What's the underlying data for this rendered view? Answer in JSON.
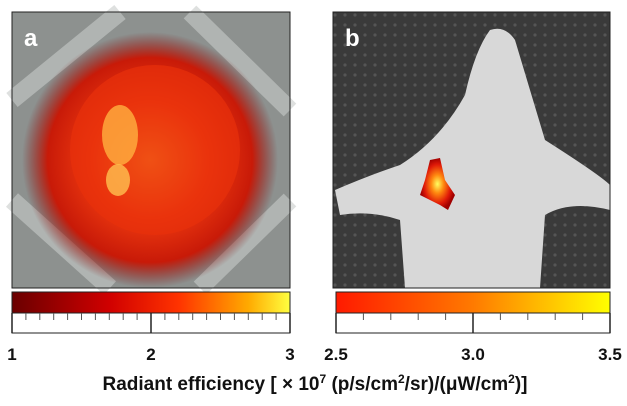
{
  "panels": [
    {
      "label": "a",
      "colorbar": {
        "lim": [
          1,
          3
        ],
        "ticks": [
          1,
          2,
          3
        ]
      }
    },
    {
      "label": "b",
      "colorbar": {
        "lim": [
          2.5,
          3.5
        ],
        "ticks": [
          2.5,
          {
            "value": 3,
            "label": "3.0"
          },
          3.5
        ]
      }
    }
  ],
  "axis_label": [
    "Radiant efficiency [ × 10",
    "7",
    " (p/s/cm",
    "2",
    "/sr)/(μW/cm",
    "2",
    ")]"
  ]
}
